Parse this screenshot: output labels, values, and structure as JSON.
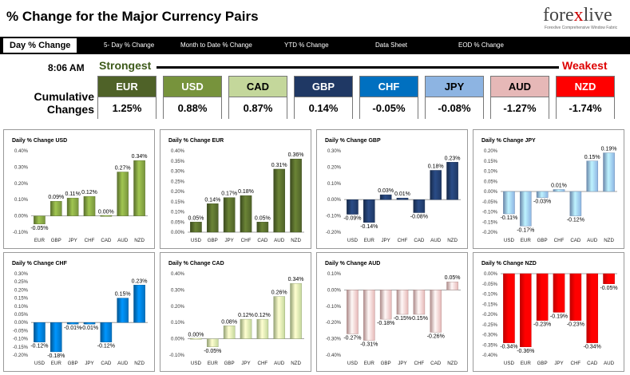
{
  "header": {
    "title": "% Change for the Major Currency Pairs",
    "logo": {
      "text_a": "fore",
      "text_x": "x",
      "text_b": "live",
      "tagline": "Forexlive Comprehensive Window Fabric"
    }
  },
  "tabs": [
    {
      "label": "Day % Change",
      "active": true
    },
    {
      "label": "5- Day % Change"
    },
    {
      "label": "Month to Date % Change"
    },
    {
      "label": "YTD % Change"
    },
    {
      "label": "Data Sheet"
    },
    {
      "label": "EOD % Change"
    }
  ],
  "summary": {
    "time": "8:06 AM",
    "strongest": "Strongest",
    "weakest": "Weakest",
    "label_line1": "Cumulative",
    "label_line2": "Changes",
    "currencies": [
      {
        "code": "EUR",
        "value": "1.25%",
        "bg": "#4f6228",
        "fg": "#ffffff"
      },
      {
        "code": "USD",
        "value": "0.88%",
        "bg": "#77933c",
        "fg": "#ffffff"
      },
      {
        "code": "CAD",
        "value": "0.87%",
        "bg": "#c4d79b",
        "fg": "#000000"
      },
      {
        "code": "GBP",
        "value": "0.14%",
        "bg": "#1f3864",
        "fg": "#ffffff"
      },
      {
        "code": "CHF",
        "value": "-0.05%",
        "bg": "#0070c0",
        "fg": "#ffffff"
      },
      {
        "code": "JPY",
        "value": "-0.08%",
        "bg": "#8db4e2",
        "fg": "#000000"
      },
      {
        "code": "AUD",
        "value": "-1.27%",
        "bg": "#e6b8b7",
        "fg": "#000000"
      },
      {
        "code": "NZD",
        "value": "-1.74%",
        "bg": "#ff0000",
        "fg": "#ffffff"
      }
    ]
  },
  "chart_data": [
    {
      "type": "bar",
      "title": "Daily % Change USD",
      "color": "#77933c",
      "categories": [
        "EUR",
        "GBP",
        "JPY",
        "CHF",
        "CAD",
        "AUD",
        "NZD"
      ],
      "values": [
        -0.05,
        0.09,
        0.11,
        0.12,
        0.0,
        0.27,
        0.34
      ],
      "labels": [
        "-0.05%",
        "0.09%",
        "0.11%",
        "0.12%",
        "0.00%",
        "0.27%",
        "0.34%"
      ],
      "ylim": [
        -0.1,
        0.4
      ],
      "ticks": [
        "0.40%",
        "0.30%",
        "0.20%",
        "0.10%",
        "0.00%",
        "-0.10%"
      ],
      "tickvals": [
        0.4,
        0.3,
        0.2,
        0.1,
        0,
        -0.1
      ]
    },
    {
      "type": "bar",
      "title": "Daily % Change EUR",
      "color": "#4f6228",
      "categories": [
        "USD",
        "GBP",
        "JPY",
        "CHF",
        "CAD",
        "AUD",
        "NZD"
      ],
      "values": [
        0.05,
        0.14,
        0.17,
        0.18,
        0.05,
        0.31,
        0.36
      ],
      "labels": [
        "0.05%",
        "0.14%",
        "0.17%",
        "0.18%",
        "0.05%",
        "0.31%",
        "0.36%"
      ],
      "ylim": [
        0,
        0.4
      ],
      "ticks": [
        "0.40%",
        "0.35%",
        "0.30%",
        "0.25%",
        "0.20%",
        "0.15%",
        "0.10%",
        "0.05%",
        "0.00%"
      ],
      "tickvals": [
        0.4,
        0.35,
        0.3,
        0.25,
        0.2,
        0.15,
        0.1,
        0.05,
        0
      ]
    },
    {
      "type": "bar",
      "title": "Daily % Change GBP",
      "color": "#1f3864",
      "categories": [
        "USD",
        "EUR",
        "JPY",
        "CHF",
        "CAD",
        "AUD",
        "NZD"
      ],
      "values": [
        -0.09,
        -0.14,
        0.03,
        0.01,
        -0.08,
        0.18,
        0.23
      ],
      "labels": [
        "-0.09%",
        "-0.14%",
        "0.03%",
        "0.01%",
        "-0.08%",
        "0.18%",
        "0.23%"
      ],
      "ylim": [
        -0.2,
        0.3
      ],
      "ticks": [
        "0.30%",
        "0.20%",
        "0.10%",
        "0.00%",
        "-0.10%",
        "-0.20%"
      ],
      "tickvals": [
        0.3,
        0.2,
        0.1,
        0,
        -0.1,
        -0.2
      ]
    },
    {
      "type": "bar",
      "title": "Daily % Change JPY",
      "color": "#8db4e2",
      "categories": [
        "USD",
        "EUR",
        "GBP",
        "CHF",
        "CAD",
        "AUD",
        "NZD"
      ],
      "values": [
        -0.11,
        -0.17,
        -0.03,
        0.01,
        -0.12,
        0.15,
        0.19
      ],
      "labels": [
        "-0.11%",
        "-0.17%",
        "-0.03%",
        "0.01%",
        "-0.12%",
        "0.15%",
        "0.19%"
      ],
      "ylim": [
        -0.2,
        0.2
      ],
      "ticks": [
        "0.20%",
        "0.15%",
        "0.10%",
        "0.05%",
        "0.00%",
        "-0.05%",
        "-0.10%",
        "-0.15%",
        "-0.20%"
      ],
      "tickvals": [
        0.2,
        0.15,
        0.1,
        0.05,
        0,
        -0.05,
        -0.1,
        -0.15,
        -0.2
      ]
    },
    {
      "type": "bar",
      "title": "Daily % Change CHF",
      "color": "#0070c0",
      "categories": [
        "USD",
        "EUR",
        "GBP",
        "JPY",
        "CAD",
        "AUD",
        "NZD"
      ],
      "values": [
        -0.12,
        -0.18,
        -0.01,
        -0.01,
        -0.12,
        0.15,
        0.23
      ],
      "labels": [
        "-0.12%",
        "-0.18%",
        "-0.01%",
        "-0.01%",
        "-0.12%",
        "0.15%",
        "0.23%"
      ],
      "ylim": [
        -0.2,
        0.3
      ],
      "ticks": [
        "0.30%",
        "0.25%",
        "0.20%",
        "0.15%",
        "0.10%",
        "0.05%",
        "0.00%",
        "-0.05%",
        "-0.10%",
        "-0.15%",
        "-0.20%"
      ],
      "tickvals": [
        0.3,
        0.25,
        0.2,
        0.15,
        0.1,
        0.05,
        0,
        -0.05,
        -0.1,
        -0.15,
        -0.2
      ]
    },
    {
      "type": "bar",
      "title": "Daily % Change CAD",
      "color": "#c4d79b",
      "categories": [
        "USD",
        "EUR",
        "GBP",
        "JPY",
        "CHF",
        "AUD",
        "NZD"
      ],
      "values": [
        0.0,
        -0.05,
        0.08,
        0.12,
        0.12,
        0.26,
        0.34
      ],
      "labels": [
        "0.00%",
        "-0.05%",
        "0.08%",
        "0.12%",
        "0.12%",
        "0.26%",
        "0.34%"
      ],
      "ylim": [
        -0.1,
        0.4
      ],
      "ticks": [
        "0.40%",
        "0.30%",
        "0.20%",
        "0.10%",
        "0.00%",
        "-0.10%"
      ],
      "tickvals": [
        0.4,
        0.3,
        0.2,
        0.1,
        0,
        -0.1
      ]
    },
    {
      "type": "bar",
      "title": "Daily % Change AUD",
      "color": "#e6b8b7",
      "categories": [
        "USD",
        "EUR",
        "GBP",
        "JPY",
        "CHF",
        "CAD",
        "NZD"
      ],
      "values": [
        -0.27,
        -0.31,
        -0.18,
        -0.15,
        -0.15,
        -0.26,
        0.05
      ],
      "labels": [
        "-0.27%",
        "-0.31%",
        "-0.18%",
        "-0.15%",
        "-0.15%",
        "-0.26%",
        "0.05%"
      ],
      "ylim": [
        -0.4,
        0.1
      ],
      "ticks": [
        "0.10%",
        "0.00%",
        "-0.10%",
        "-0.20%",
        "-0.30%",
        "-0.40%"
      ],
      "tickvals": [
        0.1,
        0,
        -0.1,
        -0.2,
        -0.3,
        -0.4
      ]
    },
    {
      "type": "bar",
      "title": "Daily % Change NZD",
      "color": "#ff0000",
      "categories": [
        "USD",
        "EUR",
        "GBP",
        "JPY",
        "CHF",
        "CAD",
        "AUD"
      ],
      "values": [
        -0.34,
        -0.36,
        -0.23,
        -0.19,
        -0.23,
        -0.34,
        -0.05
      ],
      "labels": [
        "-0.34%",
        "-0.36%",
        "-0.23%",
        "-0.19%",
        "-0.23%",
        "-0.34%",
        "-0.05%"
      ],
      "ylim": [
        -0.4,
        0
      ],
      "ticks": [
        "0.00%",
        "-0.05%",
        "-0.10%",
        "-0.15%",
        "-0.20%",
        "-0.25%",
        "-0.30%",
        "-0.35%",
        "-0.40%"
      ],
      "tickvals": [
        0,
        -0.05,
        -0.1,
        -0.15,
        -0.2,
        -0.25,
        -0.3,
        -0.35,
        -0.4
      ]
    }
  ]
}
